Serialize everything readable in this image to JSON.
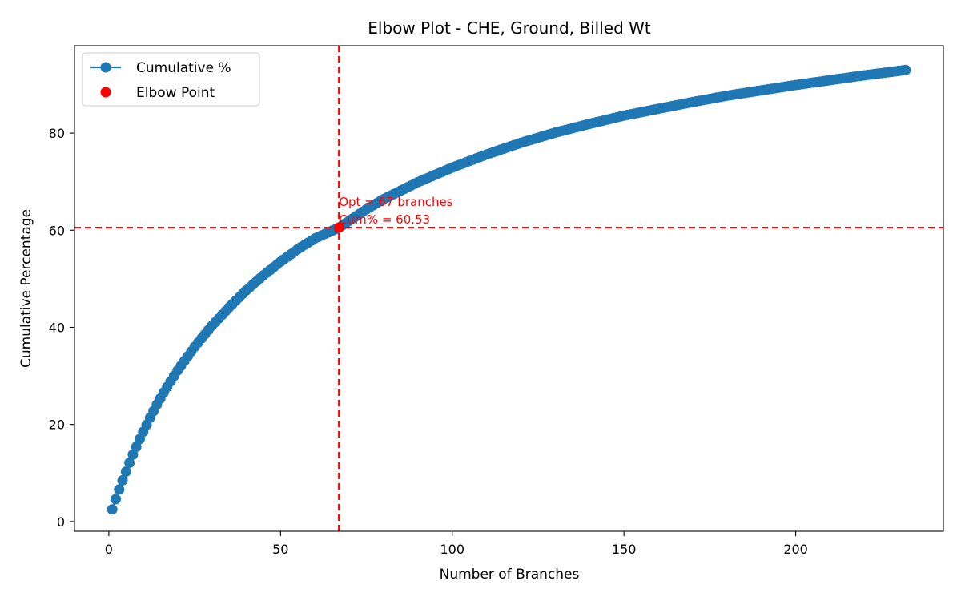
{
  "chart_data": {
    "type": "line",
    "title": "Elbow Plot - CHE, Ground, Billed Wt",
    "xlabel": "Number of Branches",
    "ylabel": "Cumulative Percentage",
    "xlim": [
      -10,
      243
    ],
    "ylim": [
      -2,
      98
    ],
    "xticks": [
      0,
      50,
      100,
      150,
      200
    ],
    "yticks": [
      0,
      20,
      40,
      60,
      80
    ],
    "grid": false,
    "legend_position": "top-left",
    "series": [
      {
        "name": "Cumulative %",
        "color": "#1f77b4",
        "marker": "circle",
        "x_start": 1,
        "x_end": 232,
        "x": [
          1,
          2,
          3,
          4,
          5,
          6,
          7,
          8,
          9,
          10,
          12,
          14,
          16,
          18,
          20,
          25,
          30,
          35,
          40,
          45,
          50,
          55,
          60,
          67,
          75,
          80,
          90,
          100,
          110,
          120,
          130,
          140,
          150,
          160,
          170,
          180,
          190,
          200,
          210,
          220,
          232
        ],
        "y": [
          2.5,
          4.6,
          6.6,
          8.5,
          10.3,
          12.1,
          13.8,
          15.4,
          17.0,
          18.5,
          21.4,
          24.1,
          26.6,
          28.9,
          31.1,
          36.0,
          40.3,
          44.1,
          47.6,
          50.7,
          53.5,
          56.1,
          58.3,
          60.53,
          64.3,
          66.4,
          69.9,
          72.9,
          75.6,
          78.0,
          80.1,
          81.9,
          83.6,
          85.0,
          86.4,
          87.7,
          88.8,
          89.9,
          90.9,
          91.9,
          93.0
        ]
      }
    ],
    "elbow_point": {
      "name": "Elbow Point",
      "color": "#ff0000",
      "x": 67,
      "y": 60.53
    },
    "annotation": {
      "line1": "Opt = 67 branches",
      "line2": "Cum% = 60.53",
      "color": "#ff0000"
    },
    "reference_lines": {
      "vertical_x": 67,
      "horizontal_y": 60.53,
      "color": "#ff0000",
      "style": "dashed"
    }
  }
}
